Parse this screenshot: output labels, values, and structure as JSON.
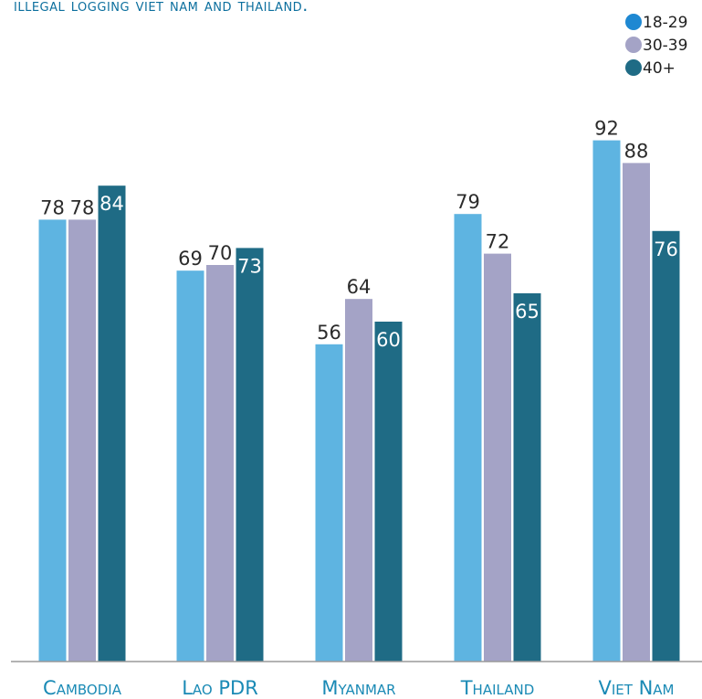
{
  "chart_data": {
    "type": "bar",
    "title": "illegal logging viet nam and thailand.",
    "categories": [
      "Cambodia",
      "Lao PDR",
      "Myanmar",
      "Thailand",
      "Viet Nam"
    ],
    "series": [
      {
        "name": "18-29",
        "color": "#5eb4e1",
        "legend_color": "#1e88d2",
        "values": [
          78,
          69,
          56,
          79,
          92
        ]
      },
      {
        "name": "30-39",
        "color": "#a4a3c6",
        "legend_color": "#a4a3c6",
        "values": [
          78,
          70,
          64,
          72,
          88
        ]
      },
      {
        "name": "40+",
        "color": "#1f6b85",
        "legend_color": "#1f6b85",
        "values": [
          84,
          73,
          60,
          65,
          76
        ]
      }
    ],
    "ylim": [
      0,
      100
    ],
    "grid": false,
    "legend_position": "top-right",
    "xlabel": "",
    "ylabel": ""
  }
}
